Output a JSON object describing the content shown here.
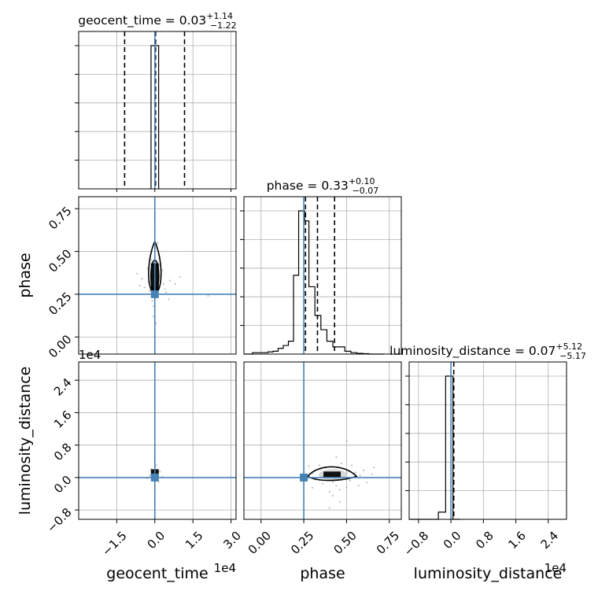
{
  "colors": {
    "truth": "#4682b4",
    "hist": "#000000",
    "grid": "#b0b0b0",
    "samples": "#9a9a9a"
  },
  "chart_data": {
    "type": "corner",
    "parameters": [
      "geocent_time",
      "phase",
      "luminosity_distance"
    ],
    "truth": {
      "geocent_time": 0.0,
      "phase": 0.25,
      "luminosity_distance": 0.0
    },
    "marginals": [
      {
        "param": "geocent_time",
        "title": {
          "label": "geocent_time",
          "median": "0.03",
          "plus": "+1.14",
          "minus": "−1.22"
        },
        "quantiles": [
          -1.19,
          0.03,
          1.17
        ],
        "bins": [
          -0.15,
          0.15
        ],
        "counts": [
          1
        ]
      },
      {
        "param": "phase",
        "title": {
          "label": "phase",
          "median": "0.33",
          "plus": "+0.10",
          "minus": "−0.07"
        },
        "quantiles": [
          0.26,
          0.33,
          0.43
        ],
        "bins": [
          -0.1,
          -0.05,
          -0.02,
          0.01,
          0.04,
          0.07,
          0.1,
          0.13,
          0.16,
          0.19,
          0.22,
          0.255,
          0.28,
          0.315,
          0.35,
          0.385,
          0.42,
          0.455,
          0.49,
          0.525,
          0.56,
          0.595,
          0.63,
          0.67,
          0.72
        ],
        "counts": [
          0,
          0.01,
          0.01,
          0.01,
          0.015,
          0.02,
          0.04,
          0.06,
          0.09,
          0.55,
          1.0,
          0.93,
          0.47,
          0.27,
          0.17,
          0.09,
          0.05,
          0.05,
          0.02,
          0.01,
          0.005,
          0.003,
          0.0,
          0.0
        ]
      },
      {
        "param": "luminosity_distance",
        "title": {
          "label": "luminosity_distance",
          "median": "0.07",
          "plus": "+5.12",
          "minus": "−5.17"
        },
        "quantiles": [
          -5.1,
          0.07,
          5.19
        ],
        "bins": [
          -1.03,
          -0.85,
          -0.67,
          -0.49,
          -0.31,
          -0.13,
          0.05,
          0.23
        ],
        "counts": [
          0,
          0,
          0,
          0,
          0.05,
          1.0,
          0
        ]
      }
    ],
    "pairs": [
      {
        "x": "geocent_time",
        "y": "phase",
        "scatter": [
          [
            -0.3,
            0.4
          ],
          [
            0.55,
            0.22
          ],
          [
            -0.5,
            0.34
          ],
          [
            0.35,
            0.31
          ],
          [
            0.15,
            0.48
          ],
          [
            -0.2,
            0.27
          ],
          [
            0.6,
            0.33
          ],
          [
            -0.1,
            0.21
          ],
          [
            0.2,
            0.42
          ],
          [
            0.8,
            0.31
          ],
          [
            -0.4,
            0.29
          ],
          [
            0.05,
            0.52
          ],
          [
            2.1,
            0.24
          ],
          [
            -0.7,
            0.37
          ],
          [
            0.45,
            0.26
          ],
          [
            -0.15,
            0.45
          ],
          [
            0.3,
            0.39
          ],
          [
            1.0,
            0.35
          ],
          [
            -0.05,
            0.18
          ],
          [
            0.12,
            0.55
          ],
          [
            -0.25,
            0.32
          ],
          [
            0.4,
            0.28
          ],
          [
            -0.6,
            0.3
          ],
          [
            0.22,
            0.36
          ],
          [
            0.0,
            0.7
          ],
          [
            0.0,
            0.62
          ],
          [
            0.0,
            0.0
          ],
          [
            0.05,
            0.08
          ],
          [
            -0.05,
            0.12
          ]
        ]
      },
      {
        "x": "geocent_time",
        "y": "luminosity_distance",
        "scatter": [
          [
            -0.2,
            0.05
          ],
          [
            0.2,
            0.15
          ],
          [
            0.1,
            -0.05
          ],
          [
            -0.1,
            0.12
          ],
          [
            0.3,
            0.02
          ],
          [
            -0.3,
            -0.02
          ],
          [
            0.05,
            0.3
          ],
          [
            0.0,
            0.5
          ],
          [
            0.0,
            -0.3
          ],
          [
            0.0,
            0.8
          ],
          [
            0.0,
            -0.6
          ],
          [
            0.15,
            -0.1
          ],
          [
            -0.15,
            0.2
          ]
        ]
      },
      {
        "x": "phase",
        "y": "luminosity_distance",
        "scatter": [
          [
            0.3,
            0.1
          ],
          [
            0.35,
            0.2
          ],
          [
            0.4,
            0.05
          ],
          [
            0.45,
            0.15
          ],
          [
            0.5,
            0.1
          ],
          [
            0.55,
            0.12
          ],
          [
            0.32,
            -0.05
          ],
          [
            0.38,
            0.25
          ],
          [
            0.42,
            -0.1
          ],
          [
            0.48,
            0.22
          ],
          [
            0.52,
            -0.08
          ],
          [
            0.58,
            0.05
          ],
          [
            0.6,
            0.18
          ],
          [
            0.36,
            -0.15
          ],
          [
            0.44,
            -0.2
          ],
          [
            0.5,
            -0.25
          ],
          [
            0.4,
            -0.35
          ],
          [
            0.46,
            -0.3
          ],
          [
            0.34,
            0.3
          ],
          [
            0.47,
            0.35
          ],
          [
            0.53,
            0.3
          ],
          [
            0.42,
            -0.45
          ],
          [
            0.46,
            -0.6
          ],
          [
            0.4,
            -0.75
          ],
          [
            0.44,
            0.5
          ],
          [
            0.5,
            0.9
          ],
          [
            0.66,
            0.25
          ],
          [
            0.62,
            -0.12
          ],
          [
            0.28,
            0.28
          ],
          [
            0.57,
            -0.2
          ],
          [
            0.65,
            0.08
          ],
          [
            0.3,
            -0.25
          ]
        ]
      }
    ],
    "axes": {
      "geocent_time": {
        "lim": [
          -3.0,
          3.2
        ],
        "ticks": [
          -1.5,
          0.0,
          1.5,
          3.0
        ],
        "tick_labels": [
          "−1.5",
          "0.0",
          "1.5",
          "3.0"
        ],
        "multiplier": "1e4"
      },
      "phase": {
        "lim": [
          -0.1,
          0.82
        ],
        "ticks": [
          0.0,
          0.25,
          0.5,
          0.75
        ],
        "tick_labels": [
          "0.00",
          "0.25",
          "0.50",
          "0.75"
        ]
      },
      "luminosity_distance": {
        "lim": [
          -1.03,
          2.85
        ],
        "ticks": [
          -0.8,
          0.0,
          0.8,
          1.6,
          2.4
        ],
        "tick_labels": [
          "−0.8",
          "0.0",
          "0.8",
          "1.6",
          "2.4"
        ],
        "multiplier": "1e4"
      }
    },
    "axis_labels": {
      "geocent_time": "geocent_time",
      "phase": "phase",
      "luminosity_distance": "luminosity_distance"
    },
    "grid": true
  }
}
